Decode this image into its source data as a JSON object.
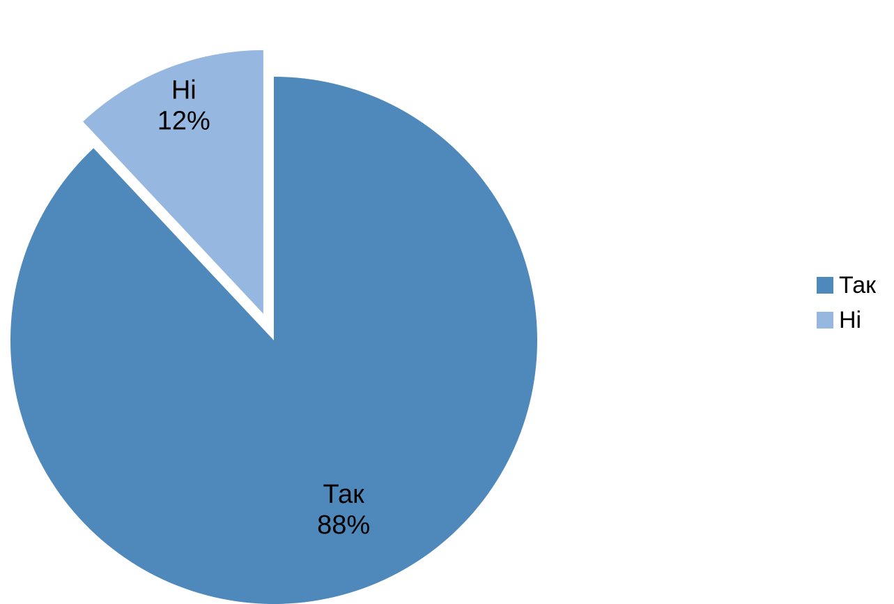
{
  "chart_data": {
    "type": "pie",
    "categories": [
      "Так",
      "Ні"
    ],
    "values": [
      88,
      12
    ],
    "value_labels": [
      "88%",
      "12%"
    ],
    "colors": [
      "#4f89bc",
      "#95b7e0"
    ],
    "exploded_slice": "Ні",
    "legend_position": "right",
    "legend": [
      {
        "label": "Так",
        "color": "#4f89bc"
      },
      {
        "label": "Ні",
        "color": "#95b7e0"
      }
    ]
  }
}
